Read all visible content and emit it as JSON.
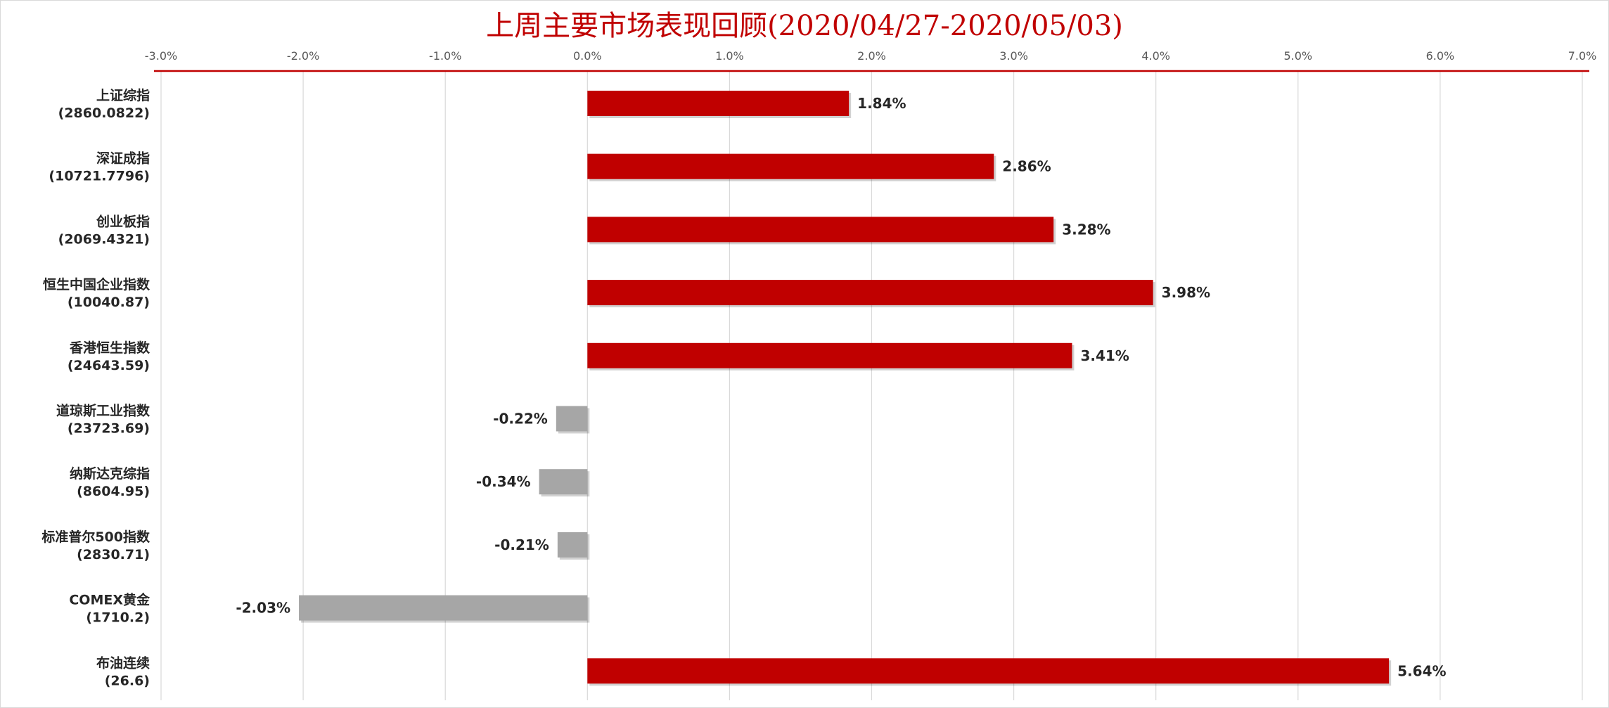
{
  "chart_data": {
    "type": "bar",
    "orientation": "horizontal",
    "title": "上周主要市场表现回顾(2020/04/27-2020/05/03)",
    "xlim": [
      -3.0,
      7.0
    ],
    "x_ticks": [
      -3.0,
      -2.0,
      -1.0,
      0.0,
      1.0,
      2.0,
      3.0,
      4.0,
      5.0,
      6.0,
      7.0
    ],
    "x_tick_labels": [
      "-3.0%",
      "-2.0%",
      "-1.0%",
      "0.0%",
      "1.0%",
      "2.0%",
      "3.0%",
      "4.0%",
      "5.0%",
      "6.0%",
      "7.0%"
    ],
    "grid": true,
    "colors": {
      "positive": "#c00000",
      "negative": "#a6a6a6",
      "title": "#c00000",
      "axis_line": "#c00000",
      "grid": "#d9d9d9"
    },
    "categories": [
      {
        "name": "上证综指",
        "value_text": "(2860.0822)"
      },
      {
        "name": "深证成指",
        "value_text": "(10721.7796)"
      },
      {
        "name": "创业板指",
        "value_text": "(2069.4321)"
      },
      {
        "name": "恒生中国企业指数",
        "value_text": "(10040.87)"
      },
      {
        "name": "香港恒生指数",
        "value_text": "(24643.59)"
      },
      {
        "name": "道琼斯工业指数",
        "value_text": "(23723.69)"
      },
      {
        "name": "纳斯达克综指",
        "value_text": "(8604.95)"
      },
      {
        "name": "标准普尔500指数",
        "value_text": "(2830.71)"
      },
      {
        "name": "COMEX黄金",
        "value_text": "(1710.2)"
      },
      {
        "name": "布油连续",
        "value_text": "(26.6)"
      }
    ],
    "values": [
      1.84,
      2.86,
      3.28,
      3.98,
      3.41,
      -0.22,
      -0.34,
      -0.21,
      -2.03,
      5.64
    ],
    "data_labels": [
      "1.84%",
      "2.86%",
      "3.28%",
      "3.98%",
      "3.41%",
      "-0.22%",
      "-0.34%",
      "-0.21%",
      "-2.03%",
      "5.64%"
    ]
  }
}
